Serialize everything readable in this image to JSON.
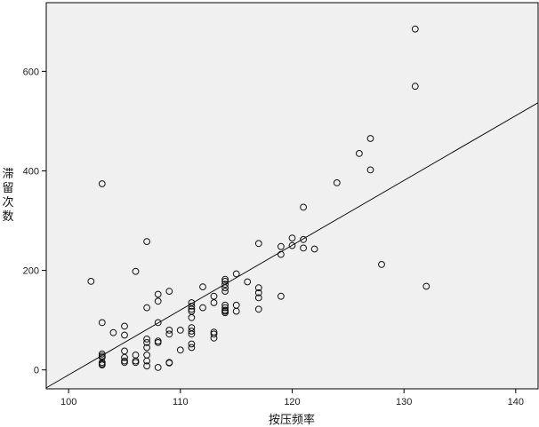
{
  "chart_data": {
    "type": "scatter",
    "xlabel": "按压频率",
    "ylabel": "滞留次数",
    "xlim": [
      98,
      142
    ],
    "ylim": [
      -38,
      738
    ],
    "xticks": [
      100,
      110,
      120,
      130,
      140
    ],
    "yticks": [
      0,
      200,
      400,
      600
    ],
    "grid": false,
    "legend": "none",
    "colors": {
      "plot_bg": "#f0f0f0",
      "marker": "#111111",
      "line": "#111111",
      "axes": "#000000"
    },
    "fit_line": {
      "x": [
        98,
        142
      ],
      "y": [
        -36,
        537
      ]
    },
    "points": {
      "x": [
        103,
        131,
        131,
        127,
        126,
        127,
        124,
        121,
        128,
        132,
        102,
        103,
        106,
        107,
        121,
        120,
        120,
        121,
        122,
        119,
        119,
        117,
        119,
        115,
        116,
        117,
        117,
        117,
        117,
        115,
        115,
        114,
        114,
        114,
        114,
        114,
        114,
        114,
        114,
        114,
        114,
        113,
        113,
        113,
        113,
        113,
        112,
        112,
        111,
        111,
        111,
        111,
        111,
        111,
        111,
        111,
        111,
        111,
        110,
        110,
        109,
        109,
        109,
        109,
        109,
        108,
        108,
        108,
        108,
        108,
        108,
        107,
        107,
        107,
        107,
        107,
        107,
        107,
        106,
        106,
        106,
        105,
        105,
        105,
        105,
        105,
        105,
        104,
        103,
        103,
        103,
        103,
        103,
        103
      ],
      "y": [
        374,
        685,
        570,
        465,
        435,
        402,
        376,
        327,
        212,
        168,
        178,
        95,
        198,
        258,
        262,
        265,
        250,
        245,
        243,
        248,
        232,
        254,
        148,
        193,
        177,
        165,
        155,
        145,
        122,
        130,
        118,
        182,
        178,
        172,
        165,
        158,
        130,
        125,
        120,
        118,
        115,
        148,
        135,
        76,
        72,
        64,
        167,
        125,
        135,
        128,
        122,
        118,
        105,
        85,
        78,
        72,
        52,
        45,
        80,
        40,
        158,
        80,
        72,
        15,
        14,
        152,
        138,
        95,
        58,
        55,
        5,
        125,
        62,
        55,
        45,
        30,
        18,
        8,
        30,
        18,
        15,
        88,
        70,
        38,
        25,
        18,
        15,
        75,
        32,
        28,
        25,
        15,
        12,
        10
      ]
    }
  }
}
